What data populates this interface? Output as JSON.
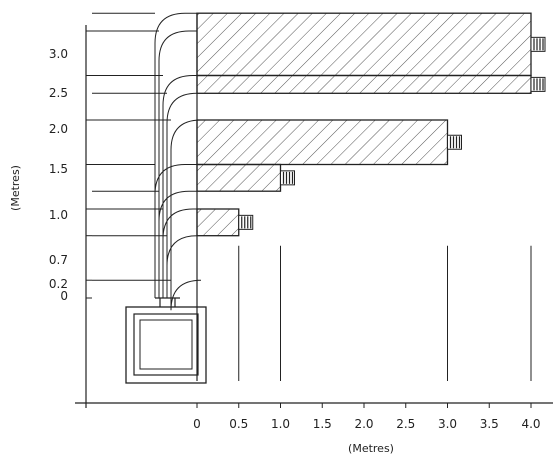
{
  "axes": {
    "x_title": "(Metres)",
    "y_title": "(Metres)",
    "x_ticks": [
      "0",
      "0.5",
      "1.0",
      "1.5",
      "2.0",
      "2.5",
      "3.0",
      "3.5",
      "4.0"
    ],
    "y_ticks": [
      "3.0",
      "2.5",
      "2.0",
      "1.5",
      "1.0",
      "0.7",
      "0.2",
      "0"
    ]
  },
  "diagram_data": {
    "x_tick_values": [
      0,
      0.5,
      1.0,
      1.5,
      2.0,
      2.5,
      3.0,
      3.5,
      4.0
    ],
    "y_tick_values": [
      3.0,
      2.5,
      2.0,
      1.5,
      1.0,
      0.7,
      0.2,
      0
    ],
    "reach_bands": [
      {
        "reach": 0.5,
        "bottom": 0.7,
        "top": 1.0
      },
      {
        "reach": 1.0,
        "bottom": 1.2,
        "top": 1.5
      },
      {
        "reach": 3.0,
        "bottom": 1.5,
        "top": 2.0
      },
      {
        "reach": 4.0,
        "bottom": 2.5,
        "top": 3.2
      },
      {
        "reach": 4.0,
        "bottom": 2.3,
        "top": 2.5
      }
    ],
    "colors": {
      "line": "#222222",
      "hatch": "#555555"
    }
  }
}
